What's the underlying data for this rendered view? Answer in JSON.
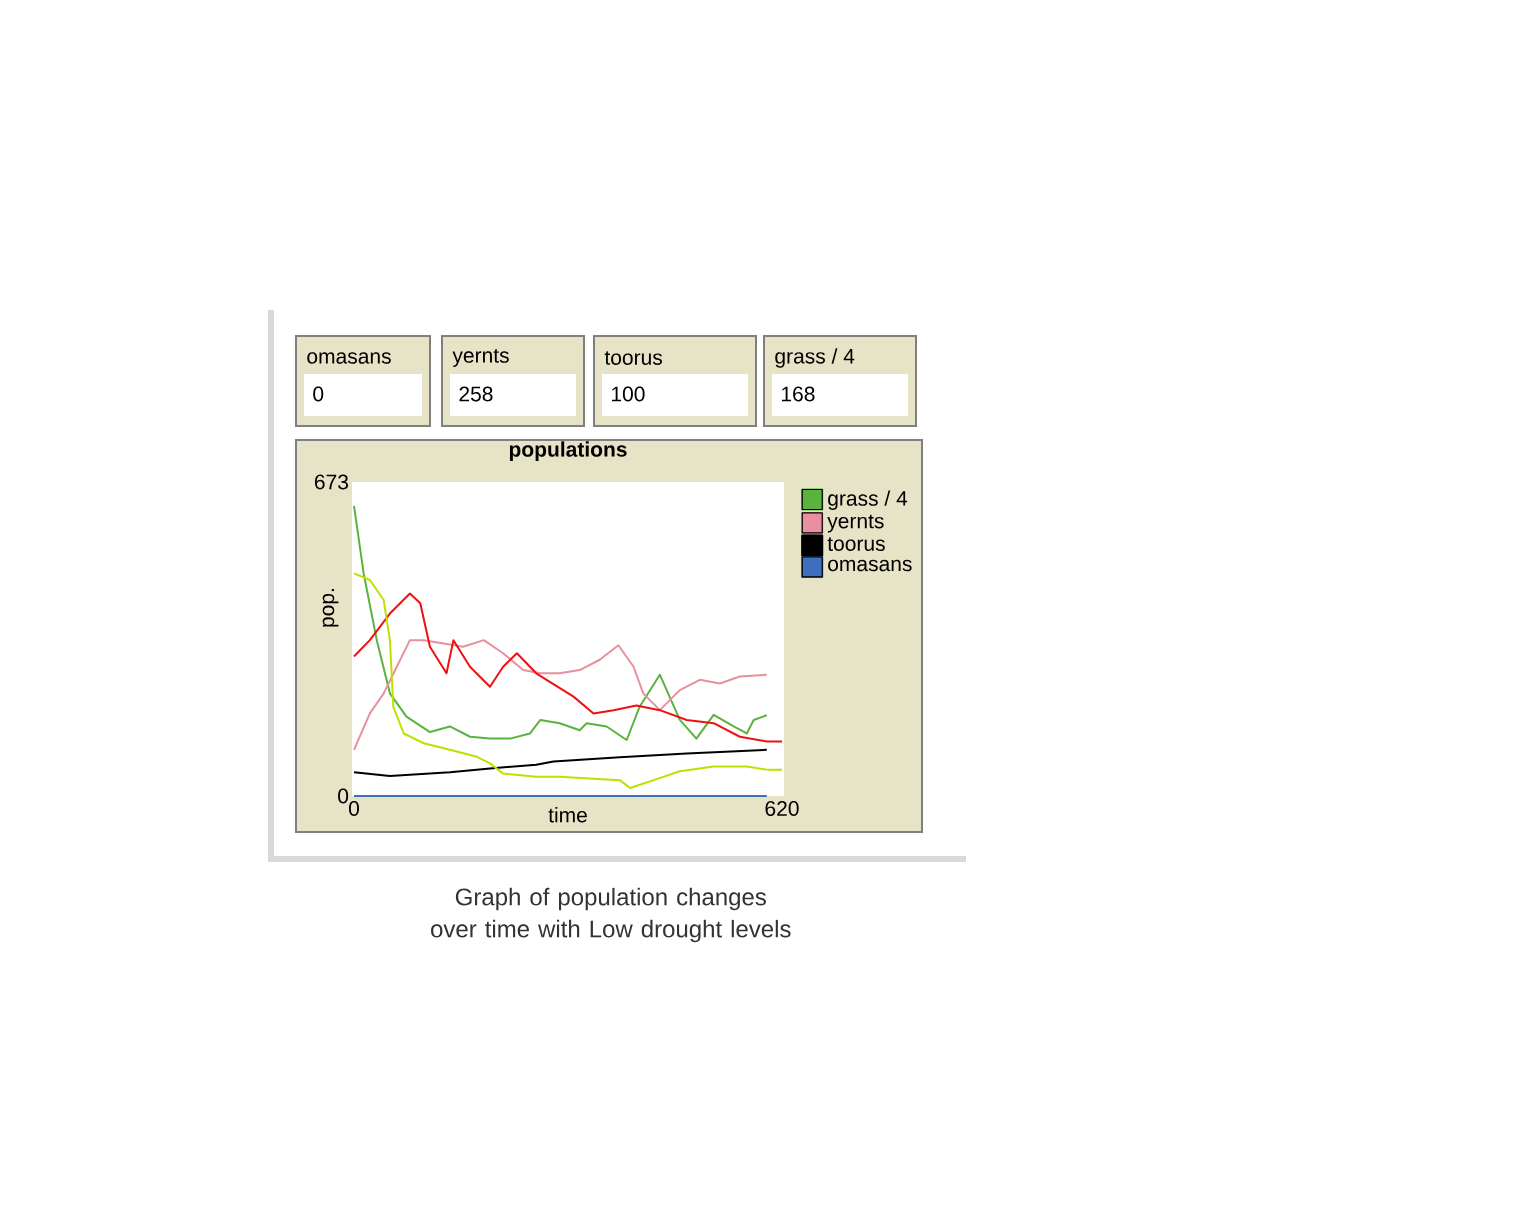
{
  "chart_data": [
    {
      "type": "other",
      "categories": [
        "omasans",
        "yernts",
        "toorus",
        "grass / 4"
      ],
      "values": [
        0,
        258,
        100,
        168
      ],
      "data_labels": true
    },
    {
      "type": "line",
      "title": "populations",
      "xlabel": "time",
      "ylabel": "pop.",
      "xlim": [
        0,
        620
      ],
      "xticks": [
        0,
        620
      ],
      "ylim": [
        0,
        673
      ],
      "yticks": [
        0,
        673
      ],
      "legend": "right",
      "annotations": [
        "Graph of population changes over time with Low drought levels"
      ],
      "series": [
        {
          "name": "grass / 4",
          "color": "#5bb33f",
          "x": [
            0,
            14,
            33,
            52,
            76,
            110,
            139,
            168,
            197,
            226,
            255,
            270,
            298,
            327,
            337,
            366,
            395,
            414,
            443,
            472,
            496,
            521,
            550,
            569,
            579,
            598
          ],
          "values": [
            622,
            477,
            334,
            220,
            170,
            137,
            149,
            127,
            123,
            123,
            134,
            163,
            156,
            141,
            156,
            149,
            120,
            192,
            260,
            163,
            123,
            174,
            149,
            134,
            163,
            173
          ]
        },
        {
          "name": "yernts",
          "color": "#e8909f",
          "x": [
            0,
            23,
            43,
            62,
            81,
            101,
            130,
            158,
            188,
            216,
            245,
            270,
            298,
            327,
            356,
            383,
            405,
            419,
            443,
            472,
            501,
            530,
            559,
            598
          ],
          "values": [
            99,
            177,
            220,
            277,
            334,
            334,
            327,
            320,
            334,
            306,
            270,
            263,
            263,
            270,
            292,
            323,
            277,
            220,
            184,
            227,
            249,
            241,
            256,
            260
          ]
        },
        {
          "name": "toorus",
          "color": "#000000",
          "x": [
            0,
            52,
            139,
            197,
            264,
            289,
            385,
            482,
            598
          ],
          "values": [
            51,
            43,
            51,
            59,
            67,
            74,
            83,
            91,
            99
          ]
        },
        {
          "name": "omasans",
          "color": "#3f6fbf",
          "x": [
            0,
            598
          ],
          "values": [
            0,
            0
          ]
        },
        {
          "color": "#ee1111",
          "x": [
            0,
            23,
            52,
            81,
            96,
            110,
            134,
            144,
            168,
            197,
            216,
            236,
            264,
            279,
            318,
            347,
            376,
            409,
            443,
            482,
            521,
            559,
            598,
            620
          ],
          "values": [
            299,
            334,
            391,
            434,
            413,
            320,
            263,
            334,
            277,
            234,
            277,
            306,
            263,
            249,
            213,
            177,
            184,
            194,
            184,
            163,
            156,
            127,
            117,
            117
          ]
        },
        {
          "color": "#bfe000",
          "x": [
            0,
            23,
            43,
            52,
            57,
            72,
            101,
            139,
            178,
            197,
            216,
            264,
            298,
            385,
            400,
            434,
            472,
            521,
            569,
            600,
            620
          ],
          "values": [
            477,
            463,
            420,
            334,
            191,
            134,
            113,
            99,
            84,
            70,
            48,
            41,
            41,
            34,
            17,
            34,
            53,
            63,
            63,
            56,
            56
          ]
        }
      ]
    }
  ]
}
